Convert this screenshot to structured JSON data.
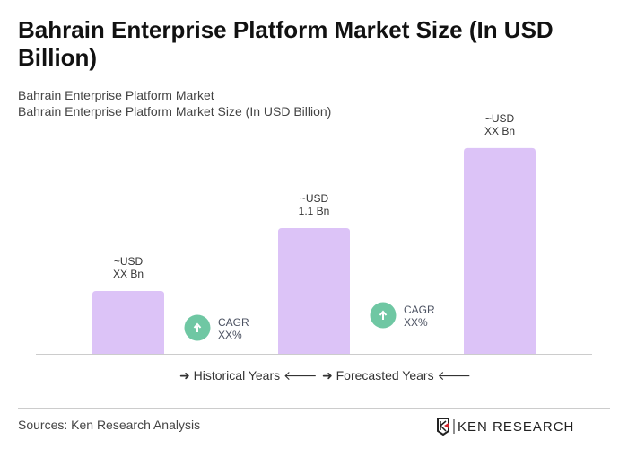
{
  "title": "Bahrain Enterprise Platform Market Size (In USD Billion)",
  "subtitle1": "Bahrain Enterprise Platform Market",
  "subtitle2": "Bahrain Enterprise Platform Market Size (In USD Billion)",
  "chart_data": {
    "type": "bar",
    "title": "Bahrain Enterprise Platform Market Size (In USD Billion)",
    "categories": [
      "",
      "",
      ""
    ],
    "values": [
      0.55,
      1.1,
      1.8
    ],
    "data_labels": [
      [
        "~USD",
        "XX Bn"
      ],
      [
        "~USD",
        "1.1 Bn"
      ],
      [
        "~USD",
        "XX Bn"
      ]
    ],
    "annotations": [
      [
        "CAGR",
        "XX%"
      ],
      [
        "CAGR",
        "XX%"
      ]
    ],
    "bar_color": "#dcc3f7",
    "cagr_color": "#6fc7a3",
    "grid": false
  },
  "legend": {
    "historical": "Historical Years",
    "forecasted": "Forecasted Years"
  },
  "source": "Sources: Ken Research Analysis",
  "logo_text": "KEN RESEARCH"
}
